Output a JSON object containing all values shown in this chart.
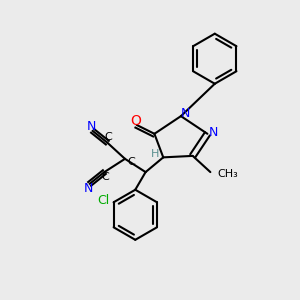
{
  "bg_color": "#ebebeb",
  "figsize": [
    3.0,
    3.0
  ],
  "dpi": 100,
  "atom_colors": {
    "N": "#0000ff",
    "O": "#ff0000",
    "C": "#000000",
    "Cl": "#00aa00",
    "H": "#5a9090"
  },
  "bond_color": "#000000",
  "bond_width": 1.5,
  "font_size": 9
}
